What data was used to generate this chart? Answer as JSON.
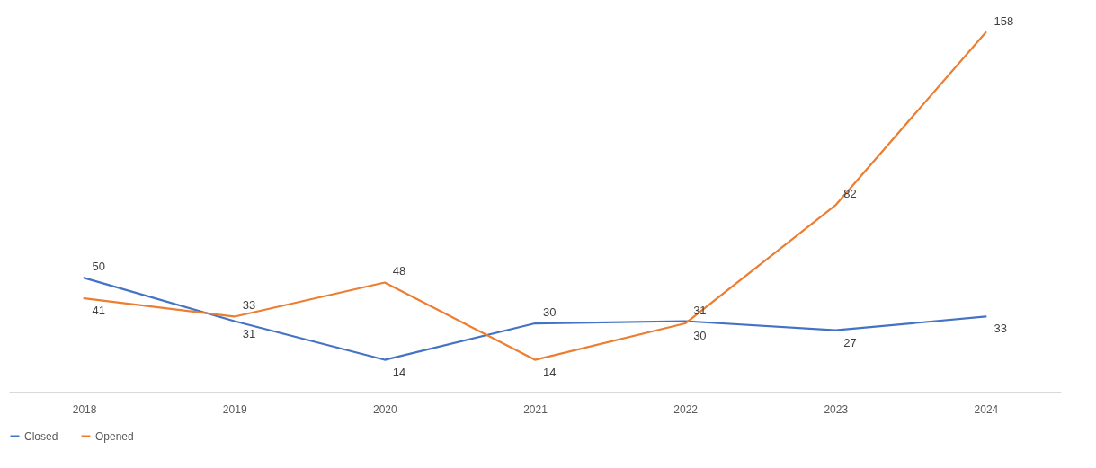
{
  "chart_data": {
    "type": "line",
    "categories": [
      "2018",
      "2019",
      "2020",
      "2021",
      "2022",
      "2023",
      "2024"
    ],
    "series": [
      {
        "name": "Closed",
        "color": "#4472c4",
        "values": [
          50,
          31,
          14,
          30,
          31,
          27,
          33
        ]
      },
      {
        "name": "Opened",
        "color": "#ed7d31",
        "values": [
          41,
          33,
          48,
          14,
          30,
          82,
          158
        ]
      }
    ],
    "data_labels": true,
    "legend": "bottom",
    "grid": false,
    "marker": "none",
    "line_style": "solid"
  }
}
